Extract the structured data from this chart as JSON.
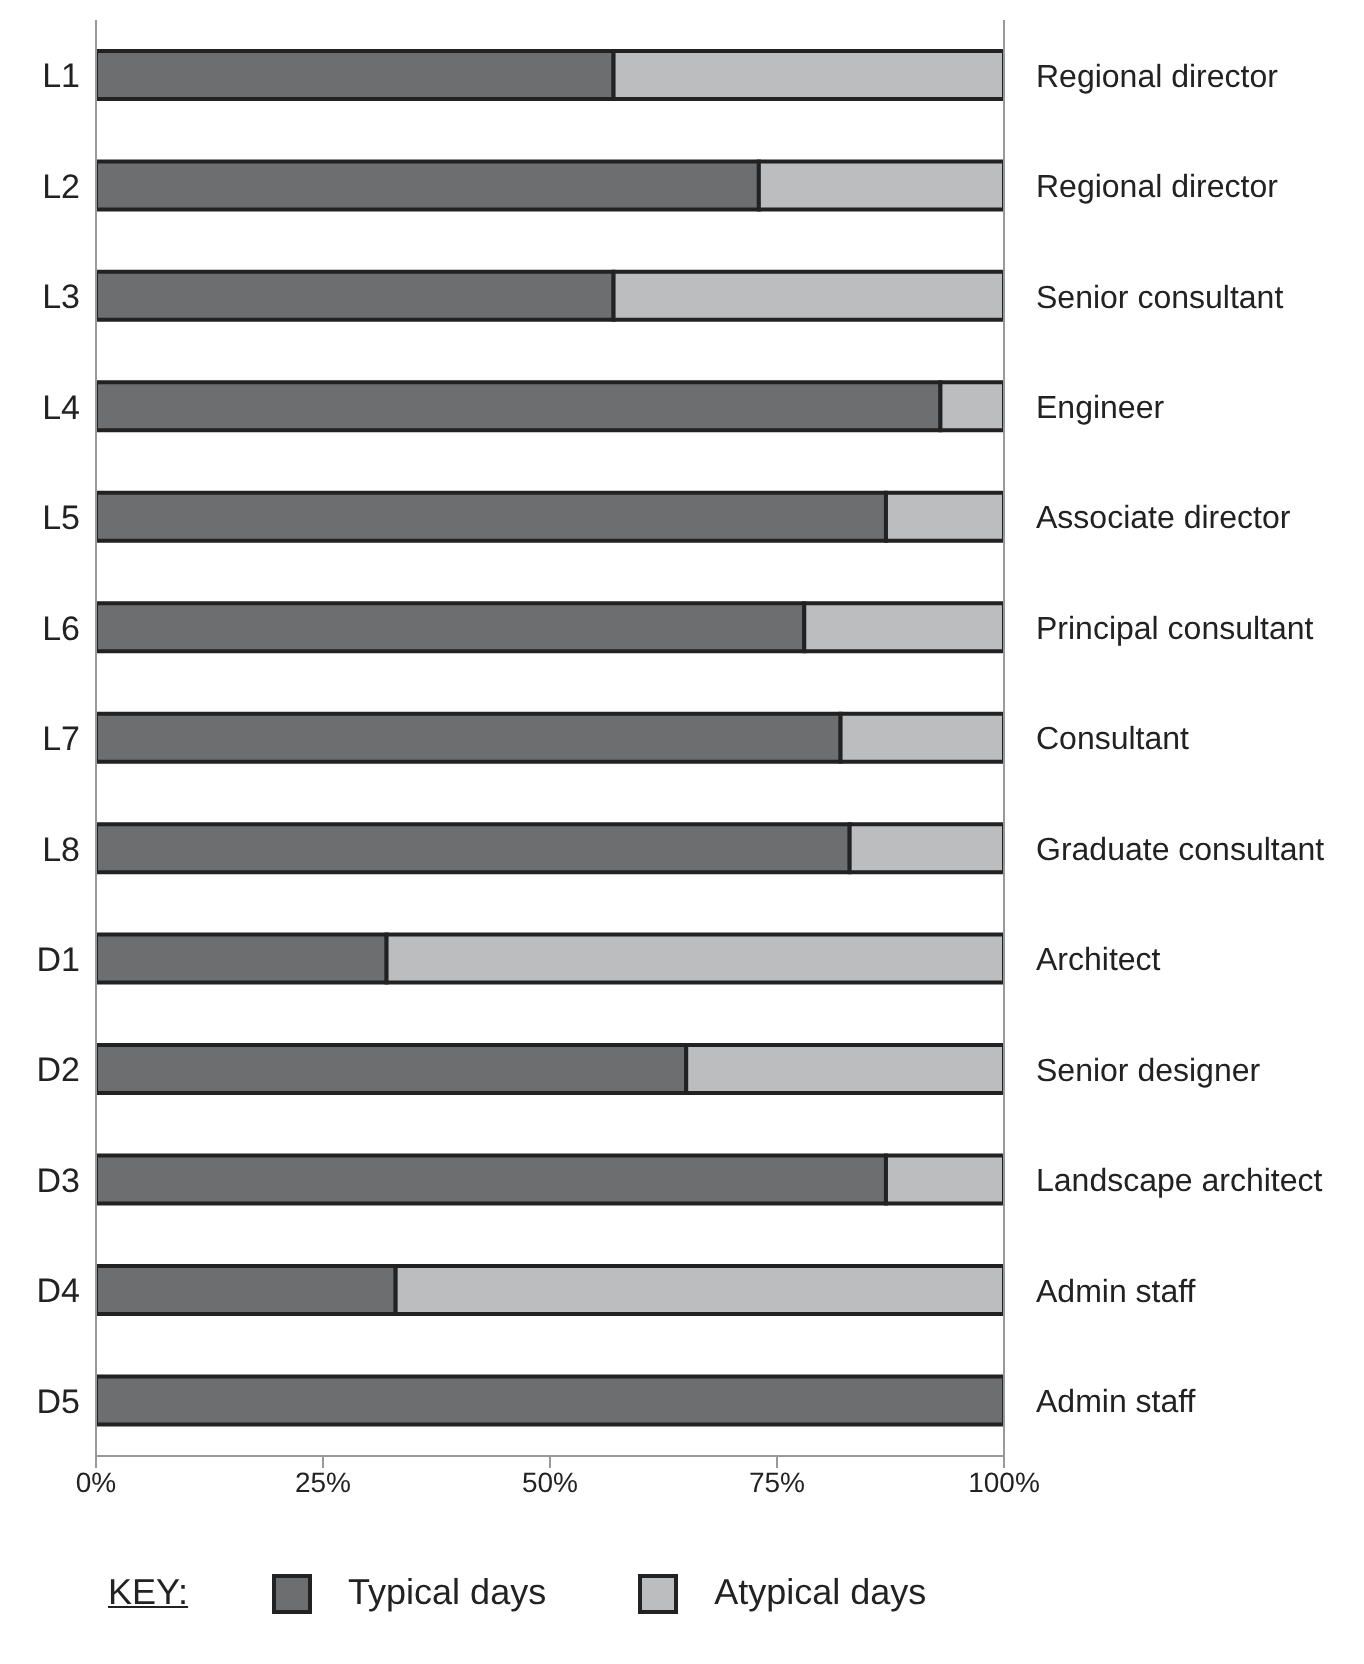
{
  "chart_data": {
    "type": "bar",
    "orientation": "horizontal",
    "stacked": true,
    "categories": [
      "L1",
      "L2",
      "L3",
      "L4",
      "L5",
      "L6",
      "L7",
      "L8",
      "D1",
      "D2",
      "D3",
      "D4",
      "D5"
    ],
    "y2_categories": [
      "Regional director",
      "Regional director",
      "Senior consultant",
      "Engineer",
      "Associate director",
      "Principal consultant",
      "Consultant",
      "Graduate consultant",
      "Architect",
      "Senior designer",
      "Landscape architect",
      "Admin staff",
      "Admin staff"
    ],
    "series": [
      {
        "name": "Typical days",
        "color": "#6d6e70",
        "values": [
          57,
          73,
          57,
          93,
          87,
          78,
          82,
          83,
          32,
          65,
          87,
          33,
          100
        ]
      },
      {
        "name": "Atypical days",
        "color": "#bcbdbf",
        "values": [
          43,
          27,
          43,
          7,
          13,
          22,
          18,
          17,
          68,
          35,
          13,
          67,
          0
        ]
      }
    ],
    "xlim": [
      0,
      100
    ],
    "xticks": [
      {
        "value": 0,
        "label": "0%"
      },
      {
        "value": 25,
        "label": "25%"
      },
      {
        "value": 50,
        "label": "50%"
      },
      {
        "value": 75,
        "label": "75%"
      },
      {
        "value": 100,
        "label": "100%"
      }
    ],
    "legend": "bottom",
    "legend_title": "KEY:",
    "grid": false
  }
}
